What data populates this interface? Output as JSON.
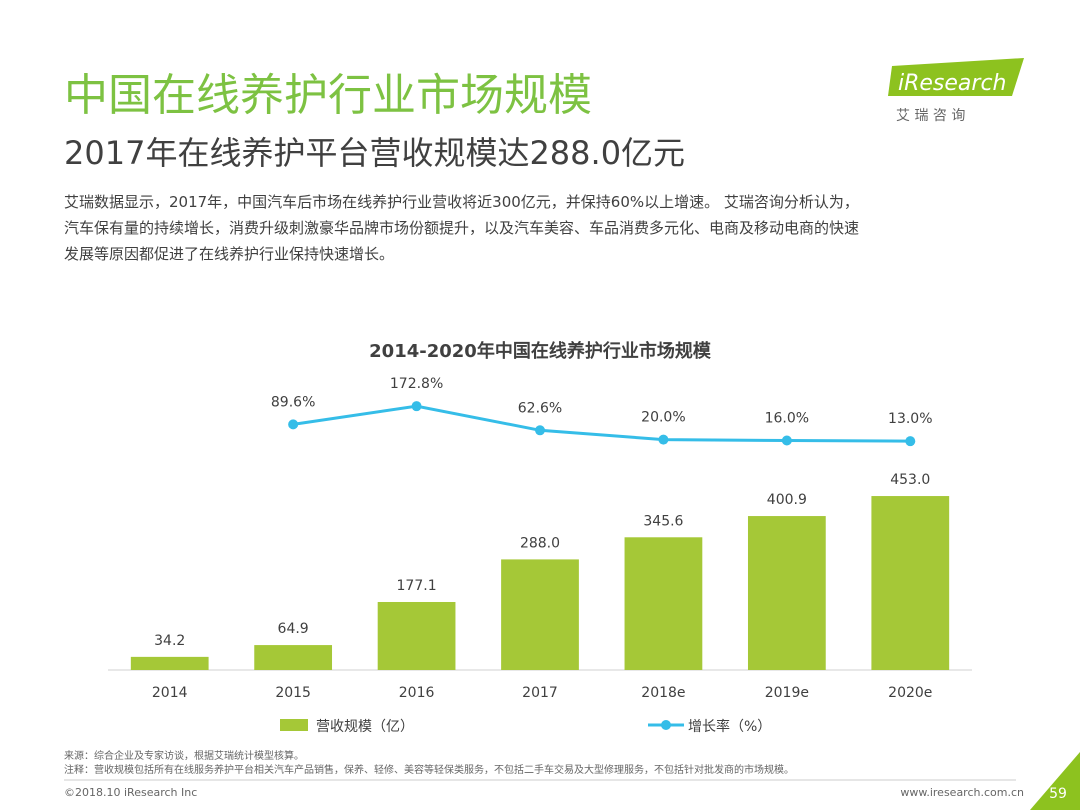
{
  "header": {
    "title": "中国在线养护行业市场规模",
    "subtitle": "2017年在线养护平台营收规模达288.0亿元",
    "body": [
      "艾瑞数据显示，2017年，中国汽车后市场在线养护行业营收将近300亿元，并保持60%以上增速。 艾瑞咨询分析认为，",
      "汽车保有量的持续增长，消费升级刺激豪华品牌市场份额提升，以及汽车美容、车品消费多元化、电商及移动电商的快速",
      "发展等原因都促进了在线养护行业保持快速增长。"
    ]
  },
  "logo": {
    "name": "iResearch",
    "cn": "艾 瑞 咨 询"
  },
  "chart_data": {
    "type": "bar",
    "title": "2014-2020年中国在线养护行业市场规模",
    "categories": [
      "2014",
      "2015",
      "2016",
      "2017",
      "2018e",
      "2019e",
      "2020e"
    ],
    "series": [
      {
        "name": "营收规模（亿）",
        "color": "#a5c837",
        "type": "bar",
        "values": [
          34.2,
          64.9,
          177.1,
          288.0,
          345.6,
          400.9,
          453.0
        ],
        "value_labels": [
          "34.2",
          "64.9",
          "177.1",
          "288.0",
          "345.6",
          "400.9",
          "453.0"
        ]
      },
      {
        "name": "增长率（%）",
        "color": "#35bde8",
        "type": "line",
        "values": [
          null,
          89.6,
          172.8,
          62.6,
          20.0,
          16.0,
          13.0
        ],
        "value_labels": [
          null,
          "89.6%",
          "172.8%",
          "62.6%",
          "20.0%",
          "16.0%",
          "13.0%"
        ]
      }
    ]
  },
  "notes": [
    "来源：综合企业及专家访谈，根据艾瑞统计模型核算。",
    "注释：营收规模包括所有在线服务养护平台相关汽车产品销售，保养、轻修、美容等轻保类服务，不包括二手车交易及大型修理服务，不包括针对批发商的市场规模。"
  ],
  "footer": {
    "copyright": "©2018.10 iResearch Inc",
    "url": "www.iresearch.com.cn",
    "page": "59"
  }
}
